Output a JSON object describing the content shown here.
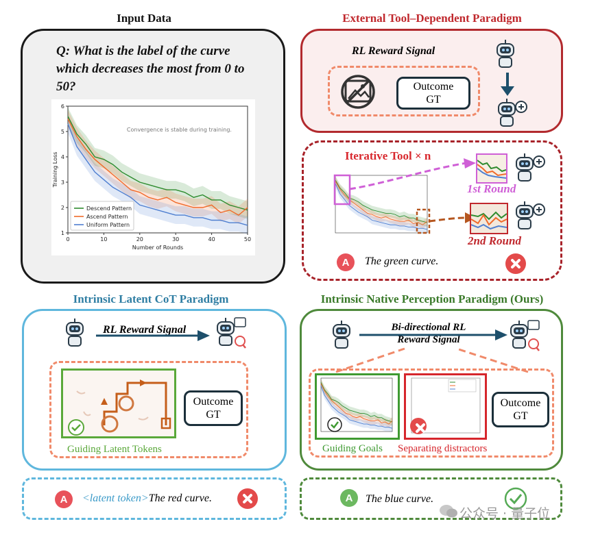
{
  "panels": {
    "input": {
      "title": "Input Data",
      "question": "Q: What is the label of the curve which decreases the most from 0 to 50?"
    },
    "external": {
      "title": "External Tool–Dependent Paradigm",
      "reward_label": "RL Reward Signal",
      "outcome_gt": "Outcome GT"
    },
    "iterative": {
      "title": "Iterative Tool × n",
      "round1": "1st Round",
      "round2": "2nd Round",
      "answer": "The green curve."
    },
    "latent": {
      "title": "Intrinsic Latent  CoT Paradigm",
      "reward_label": "RL Reward Signal",
      "outcome_gt": "Outcome GT",
      "guiding_label": "Guiding Latent Tokens",
      "answer_prefix": "<latent token>",
      "answer": "The red curve."
    },
    "native": {
      "title": "Intrinsic Native Perception Paradigm (Ours)",
      "reward_label": "Bi-directional RL Reward Signal",
      "outcome_gt": "Outcome GT",
      "goals_label": "Guiding Goals",
      "distractor_label": "Separating distractors",
      "answer": "The blue curve."
    },
    "watermark": "公众号 · 量子位"
  },
  "colors": {
    "green": "#2e8b2e",
    "orange": "#f06a2a",
    "blue": "#4f7fd0",
    "red_title": "#c0282d",
    "blue_title": "#2f7ea3",
    "green_title": "#3a7a2a",
    "magenta": "#cf5fd6",
    "brown": "#b5561f"
  },
  "chart_data": {
    "type": "line",
    "annotation": "Convergence is stable during training.",
    "xlabel": "Number of Rounds",
    "ylabel": "Training Loss",
    "xlim": [
      0,
      50
    ],
    "ylim": [
      1,
      6
    ],
    "xticks": [
      0,
      10,
      20,
      30,
      40,
      50
    ],
    "yticks": [
      1,
      2,
      3,
      4,
      5,
      6
    ],
    "legend_position": "lower-left",
    "x": [
      0,
      2.5,
      5,
      7.5,
      10,
      12.5,
      15,
      17.5,
      20,
      22.5,
      25,
      27.5,
      30,
      32.5,
      35,
      37.5,
      40,
      42.5,
      45,
      47.5,
      50
    ],
    "series": [
      {
        "name": "Descend Pattern",
        "color": "#2e8b2e",
        "values": [
          5.6,
          4.9,
          4.5,
          4.0,
          3.9,
          3.7,
          3.4,
          3.2,
          3.0,
          2.9,
          2.8,
          2.7,
          2.7,
          2.6,
          2.4,
          2.5,
          2.3,
          2.3,
          2.1,
          2.0,
          1.9
        ]
      },
      {
        "name": "Ascend Pattern",
        "color": "#f06a2a",
        "values": [
          5.5,
          4.8,
          4.3,
          3.9,
          3.6,
          3.3,
          3.0,
          2.7,
          2.6,
          2.4,
          2.3,
          2.4,
          2.2,
          2.1,
          2.0,
          2.0,
          2.1,
          1.8,
          1.9,
          1.7,
          2.0
        ]
      },
      {
        "name": "Uniform Pattern",
        "color": "#4f7fd0",
        "values": [
          5.3,
          4.4,
          3.9,
          3.4,
          3.1,
          2.8,
          2.6,
          2.4,
          2.1,
          2.0,
          1.9,
          1.8,
          1.7,
          1.7,
          1.6,
          1.6,
          1.5,
          1.5,
          1.4,
          1.4,
          1.3
        ]
      }
    ]
  }
}
